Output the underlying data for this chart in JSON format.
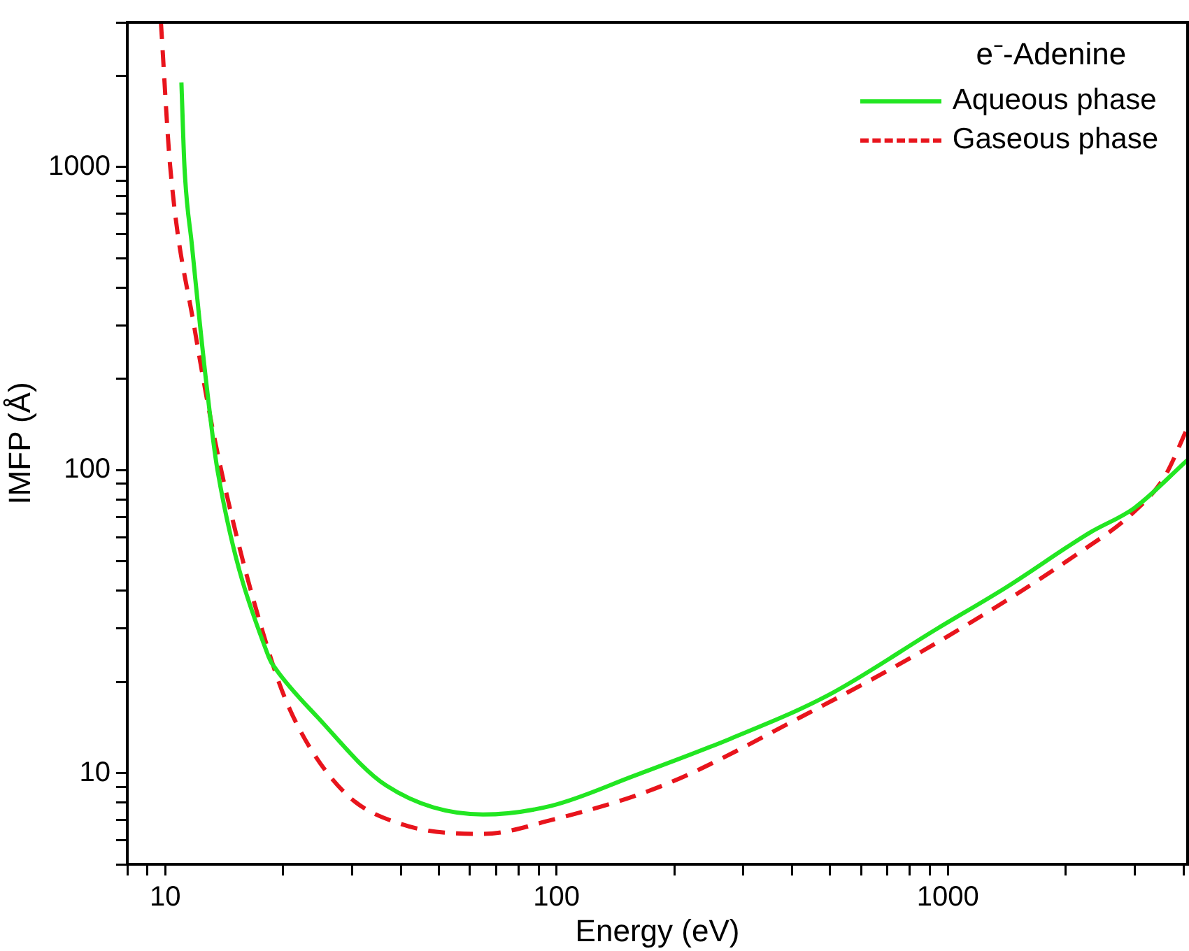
{
  "chart_data": {
    "type": "line",
    "xlabel": "Energy (eV)",
    "ylabel": "IMFP (Å)",
    "legend_title": "e⁻-Adenine",
    "legend": "top right",
    "grid": false,
    "log": "xy",
    "marker": "none",
    "xlim": [
      8,
      4100
    ],
    "ylim": [
      5,
      3000
    ],
    "xticks": [
      {
        "value": 8,
        "label": null
      },
      {
        "value": 9,
        "label": null
      },
      10,
      {
        "value": 20,
        "label": null
      },
      {
        "value": 30,
        "label": null
      },
      {
        "value": 40,
        "label": null
      },
      {
        "value": 50,
        "label": null
      },
      {
        "value": 60,
        "label": null
      },
      {
        "value": 70,
        "label": null
      },
      {
        "value": 80,
        "label": null
      },
      {
        "value": 90,
        "label": null
      },
      100,
      {
        "value": 200,
        "label": null
      },
      {
        "value": 300,
        "label": null
      },
      {
        "value": 400,
        "label": null
      },
      {
        "value": 500,
        "label": null
      },
      {
        "value": 600,
        "label": null
      },
      {
        "value": 700,
        "label": null
      },
      {
        "value": 800,
        "label": null
      },
      {
        "value": 900,
        "label": null
      },
      1000,
      {
        "value": 2000,
        "label": null
      },
      {
        "value": 3000,
        "label": null
      },
      {
        "value": 4000,
        "label": null
      }
    ],
    "yticks": [
      {
        "value": 5,
        "label": null
      },
      {
        "value": 6,
        "label": null
      },
      {
        "value": 7,
        "label": null
      },
      {
        "value": 8,
        "label": null
      },
      {
        "value": 9,
        "label": null
      },
      10,
      {
        "value": 20,
        "label": null
      },
      {
        "value": 30,
        "label": null
      },
      {
        "value": 40,
        "label": null
      },
      {
        "value": 50,
        "label": null
      },
      {
        "value": 60,
        "label": null
      },
      {
        "value": 70,
        "label": null
      },
      {
        "value": 80,
        "label": null
      },
      {
        "value": 90,
        "label": null
      },
      100,
      {
        "value": 200,
        "label": null
      },
      {
        "value": 300,
        "label": null
      },
      {
        "value": 400,
        "label": null
      },
      {
        "value": 500,
        "label": null
      },
      {
        "value": 600,
        "label": null
      },
      {
        "value": 700,
        "label": null
      },
      {
        "value": 800,
        "label": null
      },
      {
        "value": 900,
        "label": null
      },
      1000,
      {
        "value": 2000,
        "label": null
      },
      {
        "value": 3000,
        "label": null
      }
    ],
    "series": [
      {
        "name": "Aqueous phase",
        "color": "#22e622",
        "line_style": "solid",
        "x": [
          11,
          11.2,
          11.7,
          12.7,
          13.6,
          18.4,
          19.2,
          24.5,
          36.7,
          64.9,
          97,
          158,
          279,
          492,
          941,
          1410,
          2300,
          3000,
          4100
        ],
        "values": [
          1900,
          1000,
          553,
          200,
          100,
          24.1,
          22,
          15.3,
          9.1,
          7.3,
          7.8,
          9.8,
          13,
          18,
          30,
          41,
          62,
          75,
          108
        ]
      },
      {
        "name": "Gaseous phase",
        "color": "#e8141c",
        "line_style": "dashed",
        "x": [
          9.75,
          10.3,
          11.9,
          13.9,
          18.8,
          21.7,
          28.8,
          39.9,
          64.9,
          97,
          187,
          421,
          941,
          2150,
          3000,
          3580,
          4100
        ],
        "values": [
          3000,
          1000,
          290,
          100,
          23,
          14.5,
          8.6,
          6.8,
          6.3,
          7,
          9.1,
          15.3,
          27,
          53,
          73,
          95,
          138
        ]
      }
    ]
  }
}
